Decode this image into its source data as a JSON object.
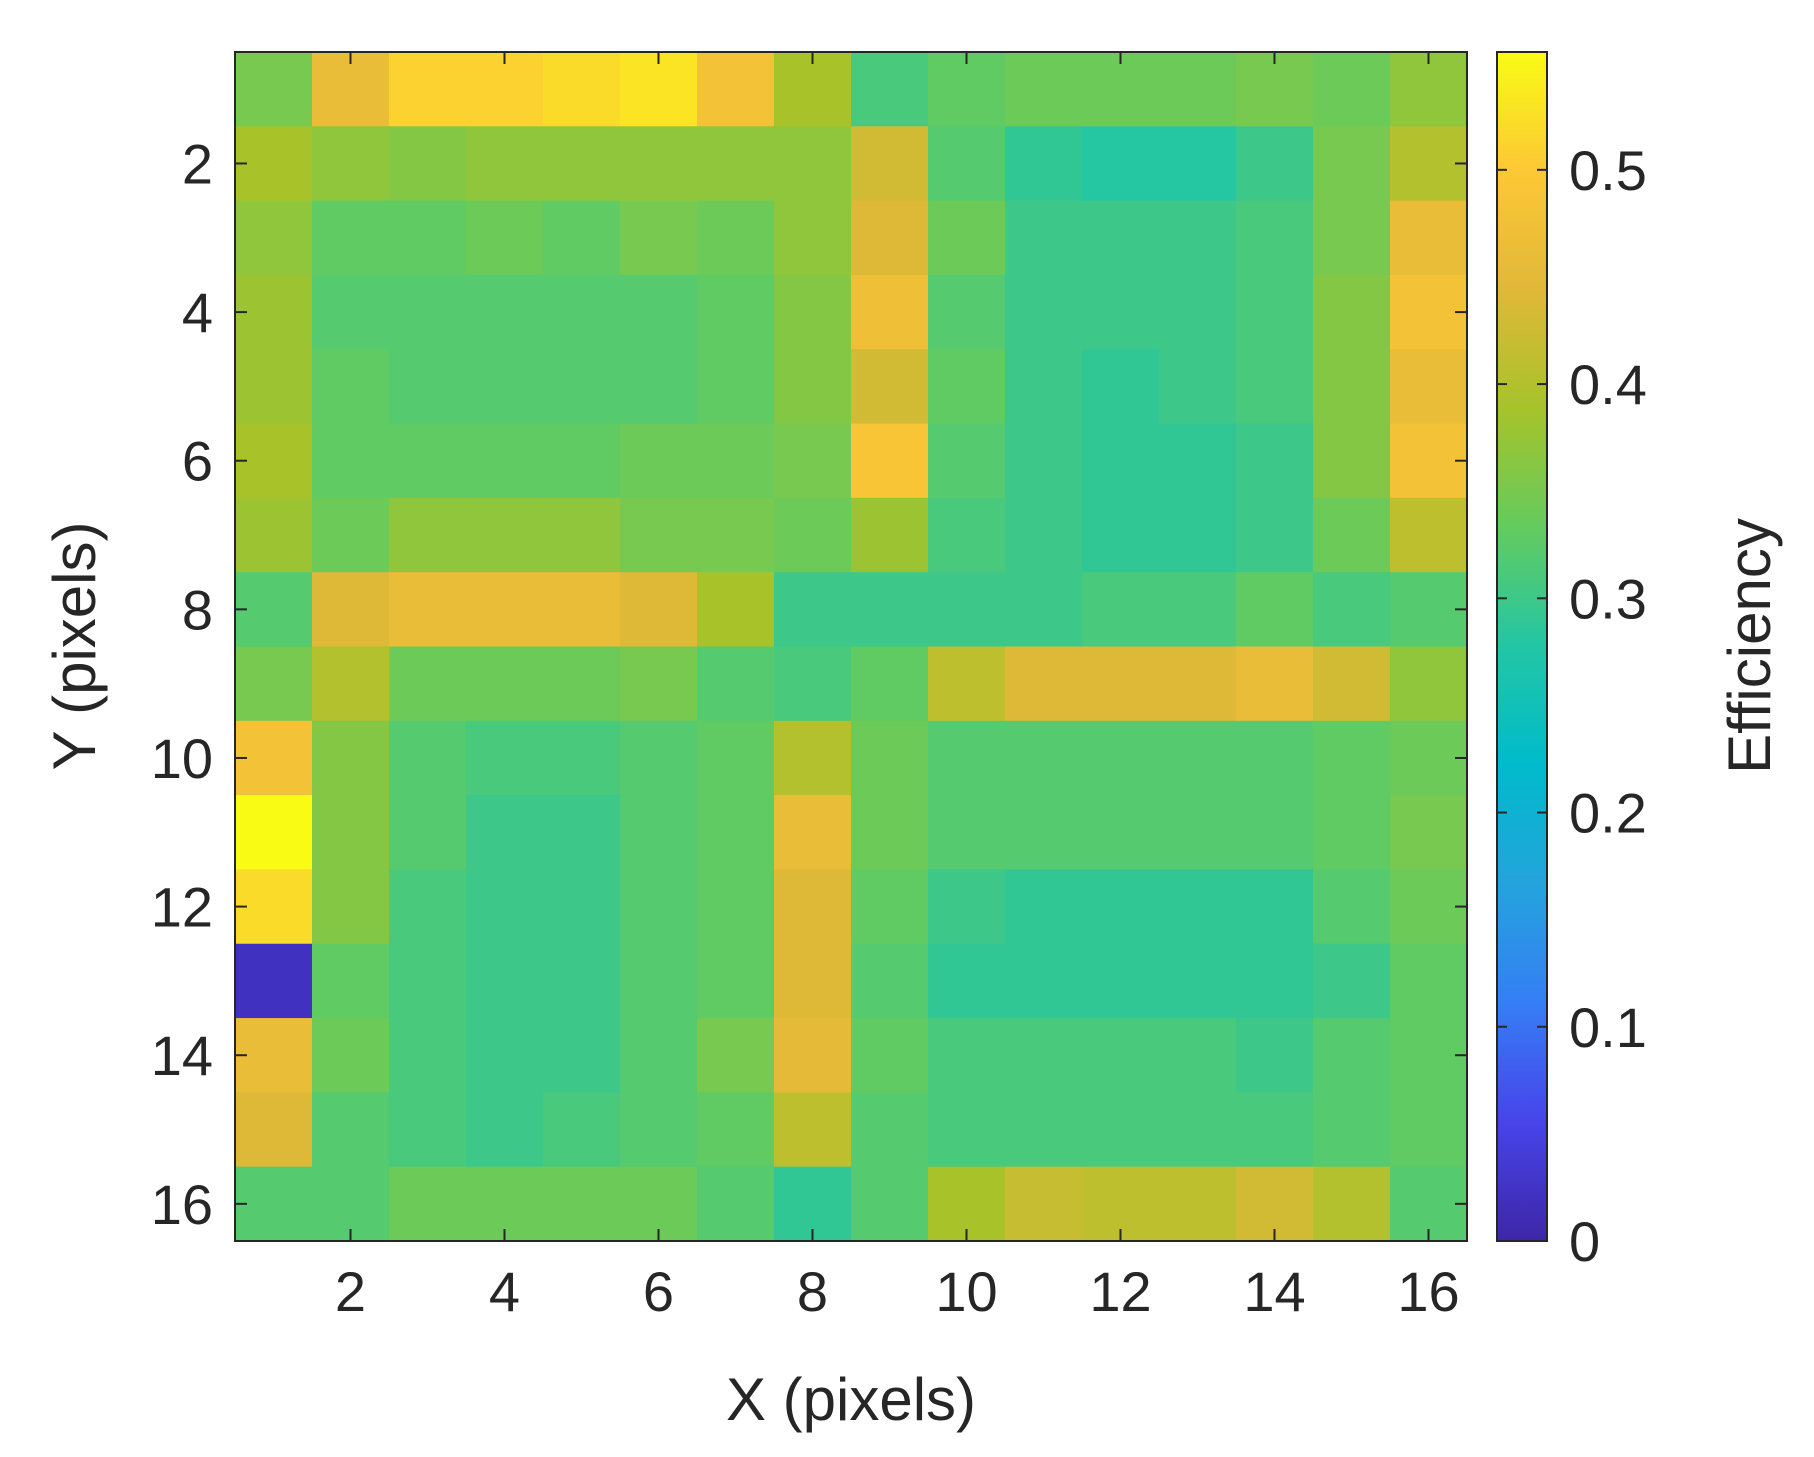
{
  "chart_data": {
    "type": "heatmap",
    "xlabel": "X (pixels)",
    "ylabel": "Y (pixels)",
    "colorbar_label": "Efficiency",
    "x": [
      1,
      2,
      3,
      4,
      5,
      6,
      7,
      8,
      9,
      10,
      11,
      12,
      13,
      14,
      15,
      16
    ],
    "y": [
      1,
      2,
      3,
      4,
      5,
      6,
      7,
      8,
      9,
      10,
      11,
      12,
      13,
      14,
      15,
      16
    ],
    "xlim": [
      0.5,
      16.5
    ],
    "ylim": [
      0.5,
      16.5
    ],
    "y_direction": "reverse",
    "x_ticks": [
      2,
      4,
      6,
      8,
      10,
      12,
      14,
      16
    ],
    "y_ticks": [
      2,
      4,
      6,
      8,
      10,
      12,
      14,
      16
    ],
    "x_tick_labels": [
      "2",
      "4",
      "6",
      "8",
      "10",
      "12",
      "14",
      "16"
    ],
    "y_tick_labels": [
      "2",
      "4",
      "6",
      "8",
      "10",
      "12",
      "14",
      "16"
    ],
    "clim": [
      0,
      0.555
    ],
    "colorbar_ticks": [
      0,
      0.1,
      0.2,
      0.3,
      0.4,
      0.5
    ],
    "colorbar_tick_labels": [
      "0",
      "0.1",
      "0.2",
      "0.3",
      "0.4",
      "0.5"
    ],
    "colormap": "parula",
    "colorbar_position": "right",
    "grid": false,
    "values": [
      [
        0.35,
        0.46,
        0.51,
        0.51,
        0.52,
        0.53,
        0.48,
        0.39,
        0.31,
        0.33,
        0.34,
        0.34,
        0.34,
        0.35,
        0.34,
        0.37
      ],
      [
        0.39,
        0.37,
        0.36,
        0.37,
        0.37,
        0.37,
        0.37,
        0.37,
        0.43,
        0.32,
        0.29,
        0.28,
        0.28,
        0.3,
        0.35,
        0.4
      ],
      [
        0.37,
        0.33,
        0.33,
        0.34,
        0.33,
        0.35,
        0.34,
        0.37,
        0.44,
        0.34,
        0.3,
        0.3,
        0.3,
        0.31,
        0.35,
        0.46
      ],
      [
        0.38,
        0.32,
        0.32,
        0.32,
        0.32,
        0.32,
        0.33,
        0.36,
        0.47,
        0.32,
        0.3,
        0.3,
        0.3,
        0.31,
        0.36,
        0.48
      ],
      [
        0.38,
        0.33,
        0.32,
        0.32,
        0.32,
        0.32,
        0.33,
        0.36,
        0.43,
        0.33,
        0.3,
        0.29,
        0.3,
        0.31,
        0.36,
        0.46
      ],
      [
        0.39,
        0.33,
        0.33,
        0.33,
        0.33,
        0.34,
        0.34,
        0.35,
        0.49,
        0.32,
        0.3,
        0.29,
        0.29,
        0.3,
        0.36,
        0.48
      ],
      [
        0.38,
        0.34,
        0.37,
        0.37,
        0.37,
        0.35,
        0.35,
        0.34,
        0.38,
        0.31,
        0.3,
        0.29,
        0.29,
        0.3,
        0.34,
        0.41
      ],
      [
        0.32,
        0.44,
        0.46,
        0.46,
        0.46,
        0.44,
        0.39,
        0.3,
        0.3,
        0.3,
        0.3,
        0.31,
        0.31,
        0.33,
        0.31,
        0.32
      ],
      [
        0.35,
        0.4,
        0.34,
        0.34,
        0.34,
        0.35,
        0.32,
        0.31,
        0.33,
        0.41,
        0.44,
        0.44,
        0.44,
        0.46,
        0.43,
        0.37
      ],
      [
        0.48,
        0.36,
        0.32,
        0.31,
        0.31,
        0.32,
        0.33,
        0.4,
        0.34,
        0.32,
        0.32,
        0.32,
        0.32,
        0.32,
        0.33,
        0.34
      ],
      [
        0.56,
        0.36,
        0.32,
        0.3,
        0.3,
        0.32,
        0.33,
        0.46,
        0.34,
        0.32,
        0.32,
        0.32,
        0.32,
        0.32,
        0.33,
        0.35
      ],
      [
        0.52,
        0.36,
        0.31,
        0.3,
        0.3,
        0.32,
        0.33,
        0.44,
        0.33,
        0.3,
        0.29,
        0.29,
        0.29,
        0.29,
        0.32,
        0.34
      ],
      [
        0.02,
        0.33,
        0.31,
        0.3,
        0.3,
        0.32,
        0.33,
        0.44,
        0.32,
        0.29,
        0.29,
        0.29,
        0.29,
        0.29,
        0.3,
        0.33
      ],
      [
        0.46,
        0.34,
        0.31,
        0.3,
        0.3,
        0.32,
        0.35,
        0.45,
        0.33,
        0.31,
        0.31,
        0.31,
        0.31,
        0.3,
        0.32,
        0.33
      ],
      [
        0.44,
        0.32,
        0.31,
        0.3,
        0.31,
        0.32,
        0.33,
        0.41,
        0.32,
        0.31,
        0.31,
        0.31,
        0.31,
        0.31,
        0.32,
        0.33
      ],
      [
        0.32,
        0.32,
        0.34,
        0.34,
        0.34,
        0.34,
        0.32,
        0.29,
        0.32,
        0.39,
        0.42,
        0.41,
        0.41,
        0.43,
        0.4,
        0.32
      ]
    ]
  }
}
